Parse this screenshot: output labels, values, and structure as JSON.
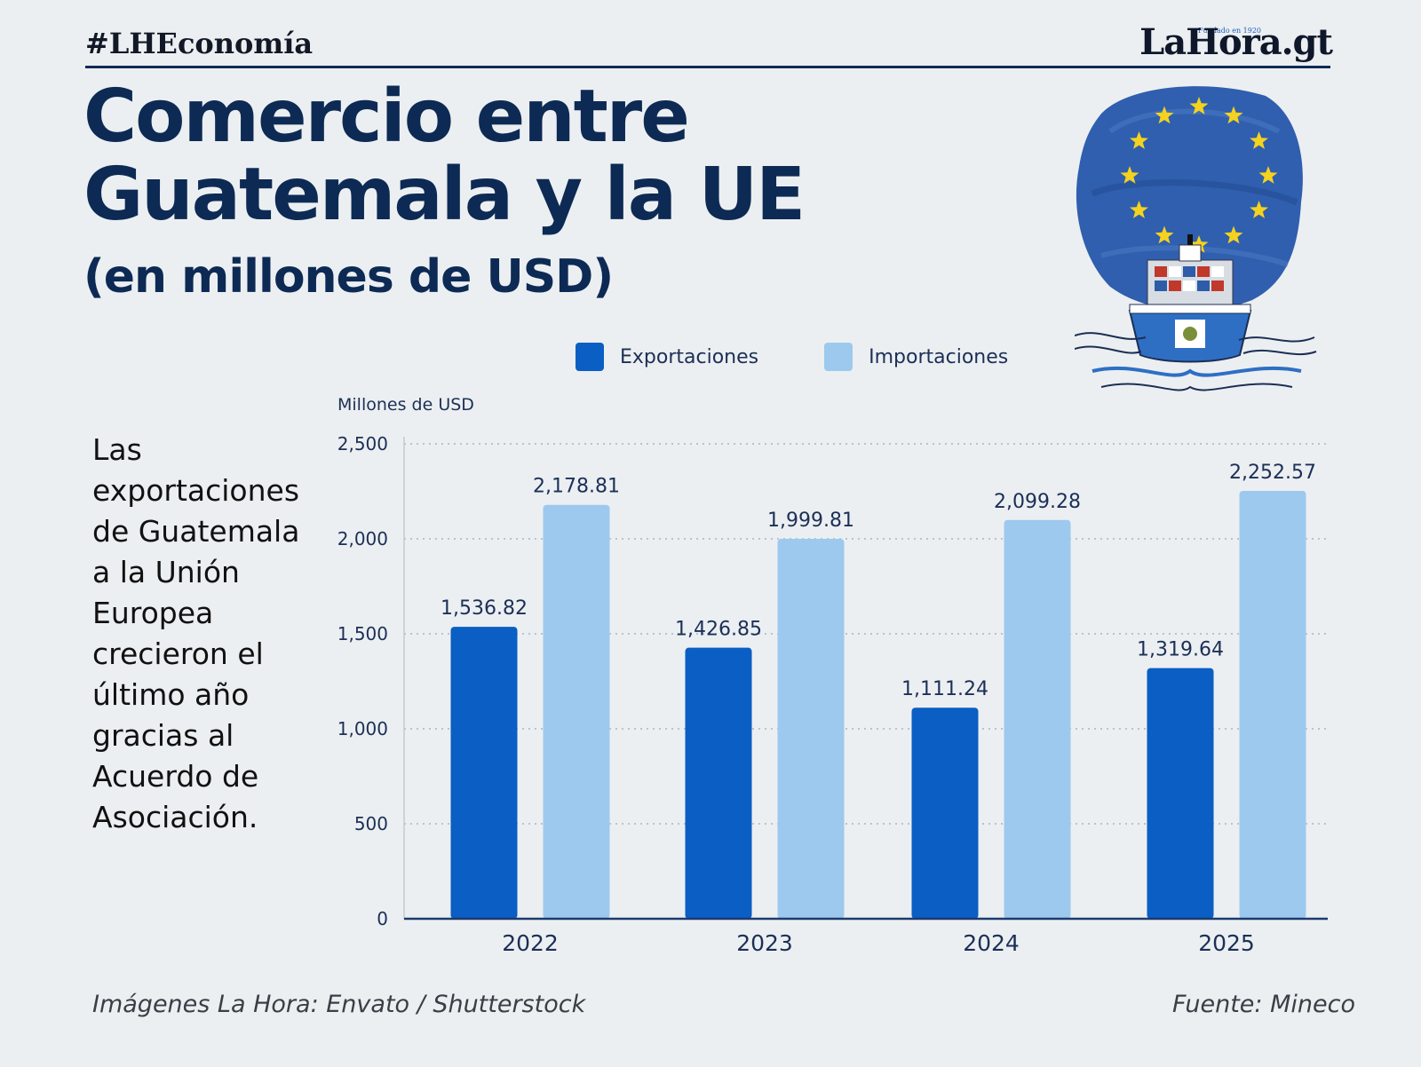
{
  "header": {
    "hashtag": "#LHEconomía",
    "logo": "LaHora.gt",
    "logo_note": "Fundado en 1920",
    "title": "Comercio entre Guatemala y la UE",
    "subtitle": "(en millones de USD)"
  },
  "side_text": "Las exportaciones de Guatemala a la Unión Europea crecieron el último año gracias al Acuerdo de Asociación.",
  "footer": {
    "credits": "Imágenes La Hora: Envato / Shutterstock",
    "source": "Fuente: Mineco"
  },
  "colors": {
    "exports": "#0a5ec4",
    "imports": "#9dc9ee",
    "title": "#0d2a55",
    "grid": "#a8b3c2"
  },
  "illustration": {
    "icons": [
      "eu-flag-icon",
      "cargo-ship-icon"
    ]
  },
  "chart_data": {
    "type": "bar",
    "title": "Comercio entre Guatemala y la UE",
    "ylabel": "Millones de USD",
    "xlabel": "",
    "categories": [
      "2022",
      "2023",
      "2024",
      "2025"
    ],
    "series": [
      {
        "name": "Exportaciones",
        "values": [
          1536.82,
          1426.85,
          1111.24,
          1319.64
        ],
        "labels": [
          "1,536.82",
          "1,426.85",
          "1,111.24",
          "1,319.64"
        ]
      },
      {
        "name": "Importaciones",
        "values": [
          2178.81,
          1999.81,
          2099.28,
          2252.57
        ],
        "labels": [
          "2,178.81",
          "1,999.81",
          "2,099.28",
          "2,252.57"
        ]
      }
    ],
    "ylim": [
      0,
      2500
    ],
    "yticks": [
      0,
      500,
      1000,
      1500,
      2000,
      2500
    ],
    "ytick_labels": [
      "0",
      "500",
      "1,000",
      "1,500",
      "2,000",
      "2,500"
    ],
    "grid": true,
    "legend": "top"
  }
}
